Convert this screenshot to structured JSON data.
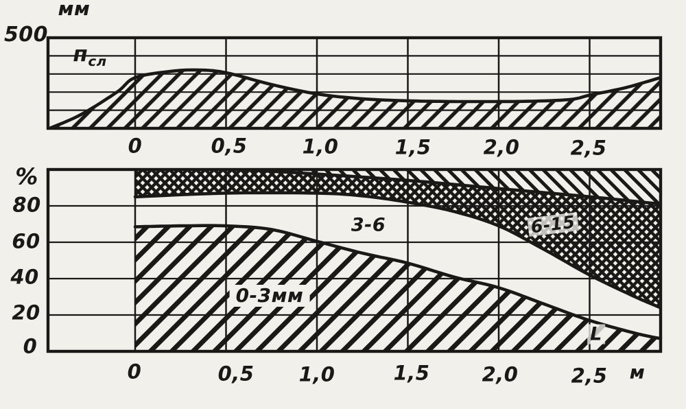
{
  "figure": {
    "paper_color": "#f2f0ea",
    "ink_color": "#1b1917",
    "description_labels_visible_only": true
  },
  "top_chart": {
    "y_unit": "мм",
    "y_top_label": "500",
    "curve_label": {
      "main": "п",
      "sub": "сл"
    },
    "x_tick_labels": [
      "0",
      "0,5",
      "1,0",
      "1,5",
      "2,0",
      "2,5"
    ]
  },
  "bottom_chart": {
    "y_unit": "%",
    "y_tick_labels": [
      "80",
      "60",
      "40",
      "20",
      "0"
    ],
    "x_tick_labels": [
      "0",
      "0,5",
      "1,0",
      "1,5",
      "2,0",
      "2,5"
    ],
    "x_unit": "м",
    "region_labels": {
      "fine": "0-3мм",
      "mid": "3-6",
      "coarse": "6-15",
      "length": "L"
    }
  },
  "chart_data": [
    {
      "type": "area",
      "title": "",
      "ylabel": "мм",
      "xlabel": "",
      "ylim": [
        0,
        500
      ],
      "xlim": [
        -0.48,
        2.89
      ],
      "grid": true,
      "x_ticks": [
        0,
        0.5,
        1.0,
        1.5,
        2.0,
        2.5
      ],
      "y_gridlines": [
        100,
        200,
        300,
        400
      ],
      "series": [
        {
          "name": "псл",
          "hatch": "slash-fine",
          "x": [
            -0.47,
            -0.3,
            -0.1,
            0,
            0.2,
            0.35,
            0.5,
            0.75,
            1.0,
            1.25,
            1.5,
            1.75,
            2.0,
            2.2,
            2.4,
            2.5,
            2.7,
            2.89
          ],
          "y": [
            0,
            75,
            200,
            280,
            315,
            322,
            307,
            242,
            190,
            163,
            152,
            148,
            148,
            150,
            160,
            183,
            225,
            280
          ]
        }
      ]
    },
    {
      "type": "area",
      "title": "",
      "ylabel": "%",
      "xlabel": "м",
      "ylim": [
        0,
        100
      ],
      "xlim": [
        -0.48,
        2.89
      ],
      "grid": true,
      "x_ticks": [
        0,
        0.5,
        1.0,
        1.5,
        2.0,
        2.5
      ],
      "y_ticks": [
        0,
        20,
        40,
        60,
        80
      ],
      "y_gridlines": [
        20,
        40,
        60,
        80
      ],
      "series": [
        {
          "name": "0-3мм",
          "hatch": "slash",
          "x": [
            0,
            0.25,
            0.5,
            0.75,
            1.0,
            1.25,
            1.5,
            1.75,
            2.0,
            2.25,
            2.5,
            2.75,
            2.89
          ],
          "y": [
            68.5,
            69,
            69,
            67,
            60.5,
            54,
            48.5,
            41,
            35,
            26,
            17,
            10,
            7
          ]
        },
        {
          "name": "3-6",
          "hatch": "none",
          "x": [
            0,
            0.5,
            1.0,
            1.25,
            1.5,
            1.75,
            2.0,
            2.25,
            2.5,
            2.75,
            2.89
          ],
          "y": [
            85,
            87,
            87,
            85.5,
            82,
            77,
            69,
            56,
            42,
            30,
            24
          ]
        },
        {
          "name": "6-15",
          "hatch": "cross",
          "x": [
            0,
            0.5,
            0.75,
            1.0,
            1.5,
            2.0,
            2.5,
            2.89
          ],
          "y": [
            100,
            100,
            99,
            97.5,
            94,
            89.5,
            85,
            81
          ]
        }
      ],
      "remainder_hatch": "back"
    }
  ]
}
